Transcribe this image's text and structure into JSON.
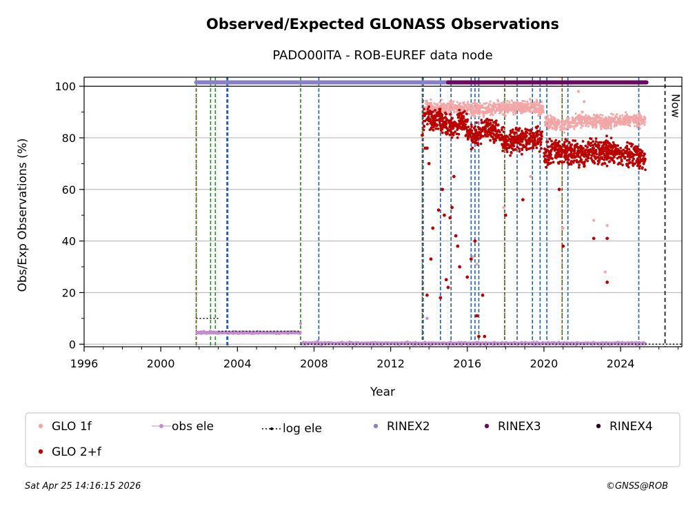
{
  "chart_data": {
    "type": "scatter",
    "title": "Observed/Expected GLONASS Observations",
    "subtitle": "PADO00ITA - ROB-EUREF data node",
    "xlabel": "Year",
    "ylabel": "Obs/Exp Observations (%)",
    "xlim": [
      1996,
      2027.2
    ],
    "ylim": [
      -1,
      103.5
    ],
    "x_ticks": [
      1996,
      2000,
      2004,
      2008,
      2012,
      2016,
      2020,
      2024
    ],
    "y_ticks": [
      0,
      20,
      40,
      60,
      80,
      100
    ],
    "grid": "horizontal",
    "now_year": 2026.32,
    "now_label": "Now",
    "green_lines": [
      2001.85,
      2002.6,
      2002.85,
      2007.3,
      2013.65,
      2017.95,
      2020.95
    ],
    "blue_lines": [
      2003.45,
      2003.5,
      2008.25,
      2013.7,
      2014.6,
      2015.15,
      2016.2,
      2016.4,
      2016.6,
      2018.6,
      2019.4,
      2019.8,
      2020.15,
      2021.25,
      2024.95
    ],
    "red_lines": [
      2001.85,
      2013.65,
      2017.95,
      2020.95
    ],
    "rinex2_band": [
      2001.85,
      2025.3
    ],
    "rinex3_band": [
      2015.0,
      2025.35
    ],
    "series": [
      {
        "name": "GLO 1f",
        "color": "#f4a6a6",
        "segments": [
          {
            "x": [
              2013.8,
              2015.0,
              2016.5,
              2018.0,
              2019.5,
              2020.0
            ],
            "y": [
              92,
              91.5,
              91,
              91.5,
              92,
              91
            ]
          },
          {
            "x": [
              2020.05,
              2021.0,
              2022.0,
              2023.0,
              2024.0,
              2025.3
            ],
            "y": [
              86,
              85,
              87,
              86,
              87,
              87
            ]
          }
        ],
        "outliers": [
          [
            2015.6,
            84
          ],
          [
            2016.3,
            34
          ],
          [
            2016.5,
            31
          ],
          [
            2017.9,
            53
          ],
          [
            2018.6,
            76
          ],
          [
            2019.3,
            65
          ],
          [
            2021.0,
            45
          ],
          [
            2021.8,
            98
          ],
          [
            2022.6,
            48
          ],
          [
            2023.2,
            28
          ],
          [
            2023.3,
            46
          ],
          [
            2022.1,
            94
          ],
          [
            2022.0,
            90
          ]
        ]
      },
      {
        "name": "GLO 2+f",
        "color": "#bb0000",
        "segments": [
          {
            "x": [
              2013.7,
              2014.6,
              2015.2,
              2015.8,
              2016.3,
              2017.0,
              2017.5,
              2018.0,
              2018.6,
              2019.4,
              2019.9
            ],
            "y": [
              88,
              87,
              84,
              86,
              80,
              84,
              83,
              78,
              79,
              80,
              81
            ]
          },
          {
            "x": [
              2020.0,
              2020.5,
              2021.0,
              2022.0,
              2023.0,
              2024.0,
              2025.3
            ],
            "y": [
              73,
              75,
              74,
              74,
              75,
              74,
              72
            ]
          }
        ],
        "outliers": [
          [
            2013.65,
            81
          ],
          [
            2013.8,
            76
          ],
          [
            2013.9,
            19
          ],
          [
            2014.1,
            33
          ],
          [
            2014.2,
            45
          ],
          [
            2014.5,
            52
          ],
          [
            2014.6,
            18
          ],
          [
            2014.7,
            60
          ],
          [
            2014.8,
            50
          ],
          [
            2014.9,
            25
          ],
          [
            2015.0,
            22
          ],
          [
            2015.1,
            49
          ],
          [
            2015.2,
            53
          ],
          [
            2015.3,
            65
          ],
          [
            2015.4,
            42
          ],
          [
            2015.5,
            38
          ],
          [
            2015.6,
            30
          ],
          [
            2016.0,
            26
          ],
          [
            2016.2,
            33
          ],
          [
            2016.4,
            40
          ],
          [
            2016.5,
            11
          ],
          [
            2016.6,
            3
          ],
          [
            2016.8,
            19
          ],
          [
            2016.9,
            3
          ],
          [
            2018.0,
            50
          ],
          [
            2018.9,
            56
          ],
          [
            2020.8,
            60
          ],
          [
            2021.0,
            38
          ],
          [
            2022.6,
            41
          ],
          [
            2023.3,
            24
          ],
          [
            2023.3,
            41
          ],
          [
            2014.0,
            70
          ],
          [
            2013.9,
            76
          ]
        ]
      },
      {
        "name": "obs ele",
        "color": "#c38bd0",
        "segments": [
          {
            "x": [
              2001.85,
              2007.3
            ],
            "y": [
              4.5,
              4.5
            ]
          },
          {
            "x": [
              2007.35,
              2025.3
            ],
            "y": [
              0.3,
              0.3
            ]
          }
        ],
        "outliers": [
          [
            2007.3,
            8
          ],
          [
            2013.9,
            10
          ],
          [
            2008.2,
            1.2
          ]
        ]
      },
      {
        "name": "log ele",
        "color": "#000000",
        "segments": [
          {
            "x": [
              2001.85,
              2003.0
            ],
            "y": [
              10,
              10
            ]
          },
          {
            "x": [
              2003.0,
              2007.3
            ],
            "y": [
              5,
              5
            ]
          },
          {
            "x": [
              2007.3,
              2027.2
            ],
            "y": [
              0,
              0
            ]
          }
        ],
        "outliers": []
      },
      {
        "name": "RINEX2",
        "color": "#8a80c8",
        "y": 101.5
      },
      {
        "name": "RINEX3",
        "color": "#6a0a60",
        "y": 101.5
      },
      {
        "name": "RINEX4",
        "color": "#2a0525",
        "y": 101.5
      }
    ]
  },
  "legend": {
    "glo1f": "GLO 1f",
    "obsele": "obs ele",
    "logele": "log ele",
    "rinex2": "RINEX2",
    "rinex3": "RINEX3",
    "rinex4": "RINEX4",
    "glo2f": "GLO 2+f"
  },
  "footer": {
    "timestamp": "Sat Apr 25 14:16:15 2026",
    "copyright": "©GNSS@ROB"
  }
}
